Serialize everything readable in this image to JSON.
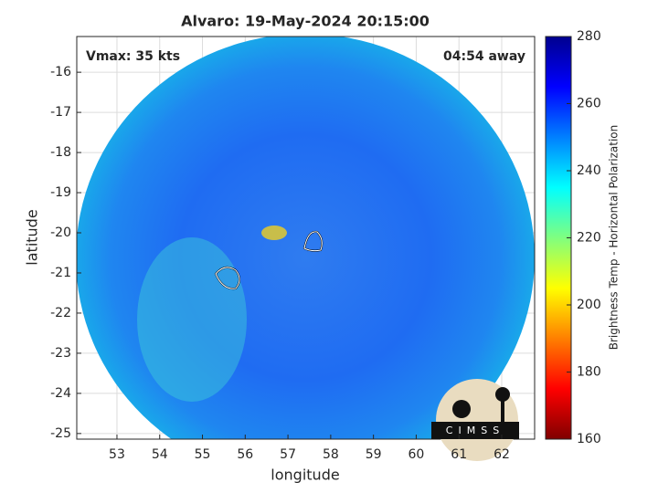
{
  "chart_data": {
    "type": "map",
    "title": "Alvaro: 19-May-2024 20:15:00",
    "annotations": [
      "Vmax: 35 kts",
      "04:54 away"
    ],
    "xlabel": "longitude",
    "ylabel": "latitude",
    "xlim": [
      52.06,
      62.77
    ],
    "xticks": [
      53,
      54,
      55,
      56,
      57,
      58,
      59,
      60,
      61,
      62
    ],
    "ylim": [
      -25.14,
      -15.11
    ],
    "yticks": [
      -25,
      -24,
      -23,
      -22,
      -21,
      -20,
      -19,
      -18,
      -17,
      -16
    ],
    "grid": true,
    "colorbar": {
      "label": "Brightness Temp - Horizontal Polarization",
      "lim": [
        160,
        280
      ],
      "ticks": [
        160,
        180,
        200,
        220,
        240,
        260,
        280
      ]
    },
    "logo": "CIMSS"
  }
}
